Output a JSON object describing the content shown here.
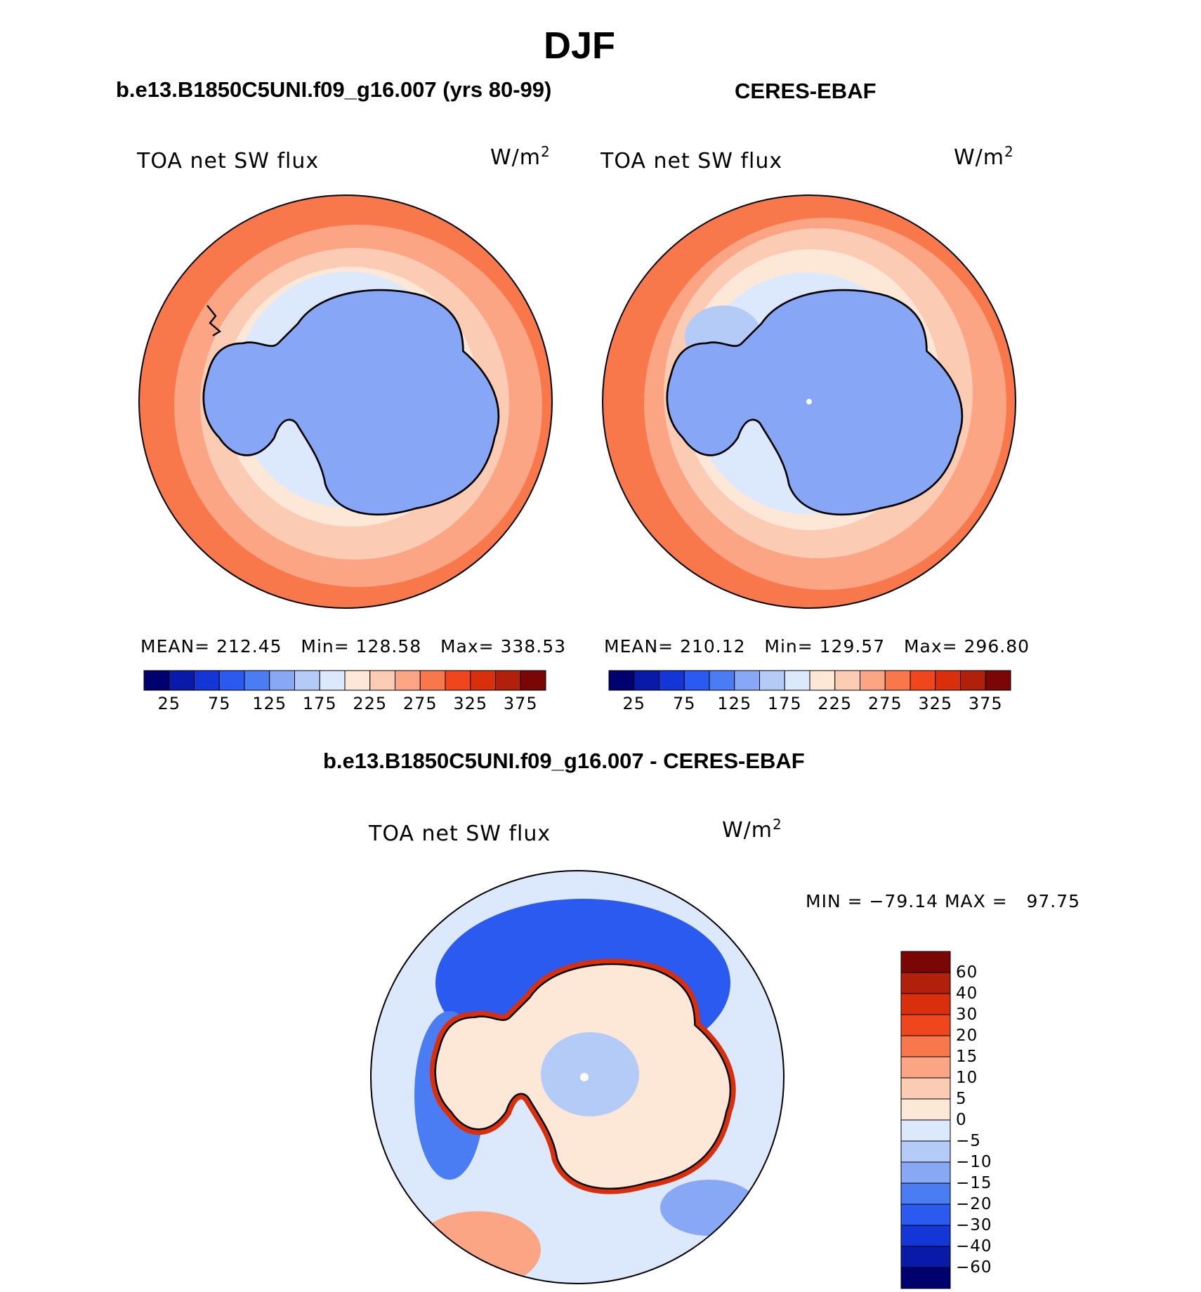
{
  "title": "DJF",
  "panels": [
    {
      "id": "model",
      "title": "b.e13.B1850C5UNI.f09_g16.007 (yrs 80-99)",
      "variable": "TOA net SW flux",
      "units_base": "W/m",
      "units_exp": "2",
      "stats": "MEAN= 212.45   Min= 128.58   Max= 338.53"
    },
    {
      "id": "obs",
      "title": "CERES-EBAF",
      "variable": "TOA net SW flux",
      "units_base": "W/m",
      "units_exp": "2",
      "stats": "MEAN= 210.12   Min= 129.57   Max= 296.80"
    },
    {
      "id": "diff",
      "title": "b.e13.B1850C5UNI.f09_g16.007 - CERES-EBAF",
      "variable": "TOA net SW flux",
      "units_base": "W/m",
      "units_exp": "2",
      "stats": "MIN = −79.14 MAX =   97.75"
    }
  ],
  "colorbar_abs": {
    "colors": [
      "#00006e",
      "#0a1aa8",
      "#1436d6",
      "#2a5aef",
      "#4a7cf4",
      "#88a8f6",
      "#b4cbf8",
      "#dce8fb",
      "#fde8d8",
      "#fccbb4",
      "#fba585",
      "#f8784c",
      "#f0461e",
      "#d92f0c",
      "#b0200a",
      "#7a0606"
    ],
    "tick_labels": [
      "25",
      "75",
      "125",
      "175",
      "225",
      "275",
      "325",
      "375"
    ]
  },
  "colorbar_diff": {
    "colors": [
      "#00006e",
      "#0a1aa8",
      "#1436d6",
      "#2a5aef",
      "#4a7cf4",
      "#88a8f6",
      "#b4cbf8",
      "#dce8fb",
      "#fde8d8",
      "#fccbb4",
      "#fba585",
      "#f8784c",
      "#f0461e",
      "#d92f0c",
      "#b0200a",
      "#7a0606"
    ],
    "tick_labels": [
      "60",
      "40",
      "30",
      "20",
      "15",
      "10",
      "5",
      "0",
      "−5",
      "−10",
      "−15",
      "−20",
      "−30",
      "−40",
      "−60"
    ]
  },
  "map_colors": {
    "ice": "#87a6f5",
    "ice_light": "#b4cbf8",
    "pale_blue": "#dce8fb",
    "cream": "#fde8d8",
    "peach": "#fccbb4",
    "salmon": "#fba585",
    "orange": "#f8784c",
    "red": "#f0461e",
    "deep_blue": "#2a5aef",
    "mid_blue": "#4a7cf4",
    "coast": "#000000"
  }
}
